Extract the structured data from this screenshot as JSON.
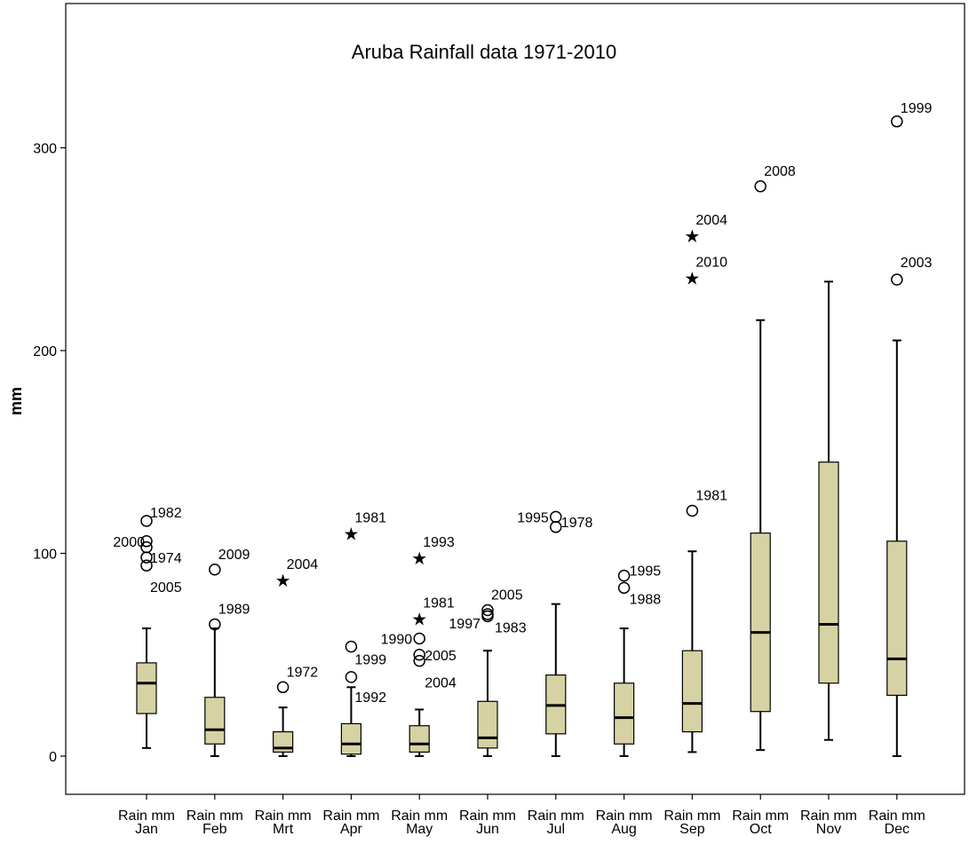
{
  "chart_data": {
    "type": "boxplot",
    "title": "Aruba Rainfall data 1971-2010",
    "xlabel": "",
    "ylabel": "mm",
    "ylim": [
      -20,
      365
    ],
    "yticks": [
      0,
      100,
      200,
      300
    ],
    "grid": false,
    "categories": [
      [
        "Rain mm",
        "Jan"
      ],
      [
        "Rain mm",
        "Feb"
      ],
      [
        "Rain mm",
        "Mrt"
      ],
      [
        "Rain mm",
        "Apr"
      ],
      [
        "Rain mm",
        "May"
      ],
      [
        "Rain mm",
        "Jun"
      ],
      [
        "Rain mm",
        "Jul"
      ],
      [
        "Rain mm",
        "Aug"
      ],
      [
        "Rain mm",
        "Sep"
      ],
      [
        "Rain mm",
        "Oct"
      ],
      [
        "Rain mm",
        "Nov"
      ],
      [
        "Rain mm",
        "Dec"
      ]
    ],
    "box_color": "#d6d2a3",
    "boxes": [
      {
        "whisker_low": 4,
        "q1": 21,
        "median": 36,
        "q3": 46,
        "whisker_high": 63,
        "outliers": [
          {
            "value": 116,
            "label": "1982",
            "marker": "circle"
          },
          {
            "value": 106,
            "label": "2000",
            "marker": "circle"
          },
          {
            "value": 103,
            "label": "",
            "marker": "circle"
          },
          {
            "value": 98,
            "label": "1974",
            "marker": "circle"
          },
          {
            "value": 94,
            "label": "2005",
            "marker": "circle"
          }
        ]
      },
      {
        "whisker_low": 0,
        "q1": 6,
        "median": 13,
        "q3": 29,
        "whisker_high": 63,
        "outliers": [
          {
            "value": 92,
            "label": "2009",
            "marker": "circle"
          },
          {
            "value": 65,
            "label": "1989",
            "marker": "circle"
          }
        ]
      },
      {
        "whisker_low": 0,
        "q1": 2,
        "median": 4,
        "q3": 12,
        "whisker_high": 24,
        "outliers": [
          {
            "value": 87,
            "label": "2004",
            "marker": "star"
          },
          {
            "value": 34,
            "label": "1972",
            "marker": "circle"
          }
        ]
      },
      {
        "whisker_low": 0,
        "q1": 1,
        "median": 6,
        "q3": 16,
        "whisker_high": 34,
        "outliers": [
          {
            "value": 110,
            "label": "1981",
            "marker": "star"
          },
          {
            "value": 54,
            "label": "1999",
            "marker": "circle"
          },
          {
            "value": 39,
            "label": "1992",
            "marker": "circle"
          }
        ]
      },
      {
        "whisker_low": 0,
        "q1": 2,
        "median": 6,
        "q3": 15,
        "whisker_high": 23,
        "outliers": [
          {
            "value": 98,
            "label": "1993",
            "marker": "star"
          },
          {
            "value": 68,
            "label": "1981",
            "marker": "star"
          },
          {
            "value": 58,
            "label": "1990",
            "marker": "circle"
          },
          {
            "value": 50,
            "label": "2005",
            "marker": "circle"
          },
          {
            "value": 47,
            "label": "2004",
            "marker": "circle"
          }
        ]
      },
      {
        "whisker_low": 0,
        "q1": 4,
        "median": 9,
        "q3": 27,
        "whisker_high": 52,
        "outliers": [
          {
            "value": 72,
            "label": "2005",
            "marker": "circle"
          },
          {
            "value": 70,
            "label": "1997",
            "marker": "circle"
          },
          {
            "value": 69,
            "label": "1983",
            "marker": "circle"
          }
        ]
      },
      {
        "whisker_low": 0,
        "q1": 11,
        "median": 25,
        "q3": 40,
        "whisker_high": 75,
        "outliers": [
          {
            "value": 118,
            "label": "1995",
            "marker": "circle"
          },
          {
            "value": 113,
            "label": "1978",
            "marker": "circle"
          }
        ]
      },
      {
        "whisker_low": 0,
        "q1": 6,
        "median": 19,
        "q3": 36,
        "whisker_high": 63,
        "outliers": [
          {
            "value": 89,
            "label": "1995",
            "marker": "circle"
          },
          {
            "value": 83,
            "label": "1988",
            "marker": "circle"
          }
        ]
      },
      {
        "whisker_low": 2,
        "q1": 12,
        "median": 26,
        "q3": 52,
        "whisker_high": 101,
        "outliers": [
          {
            "value": 257,
            "label": "2004",
            "marker": "star"
          },
          {
            "value": 236,
            "label": "2010",
            "marker": "star"
          },
          {
            "value": 121,
            "label": "1981",
            "marker": "circle"
          }
        ]
      },
      {
        "whisker_low": 3,
        "q1": 22,
        "median": 61,
        "q3": 110,
        "whisker_high": 215,
        "outliers": [
          {
            "value": 281,
            "label": "2008",
            "marker": "circle"
          }
        ]
      },
      {
        "whisker_low": 8,
        "q1": 36,
        "median": 65,
        "q3": 145,
        "whisker_high": 234,
        "outliers": []
      },
      {
        "whisker_low": 0,
        "q1": 30,
        "median": 48,
        "q3": 106,
        "whisker_high": 205,
        "outliers": [
          {
            "value": 313,
            "label": "1999",
            "marker": "circle"
          },
          {
            "value": 235,
            "label": "2003",
            "marker": "circle"
          }
        ]
      }
    ]
  }
}
